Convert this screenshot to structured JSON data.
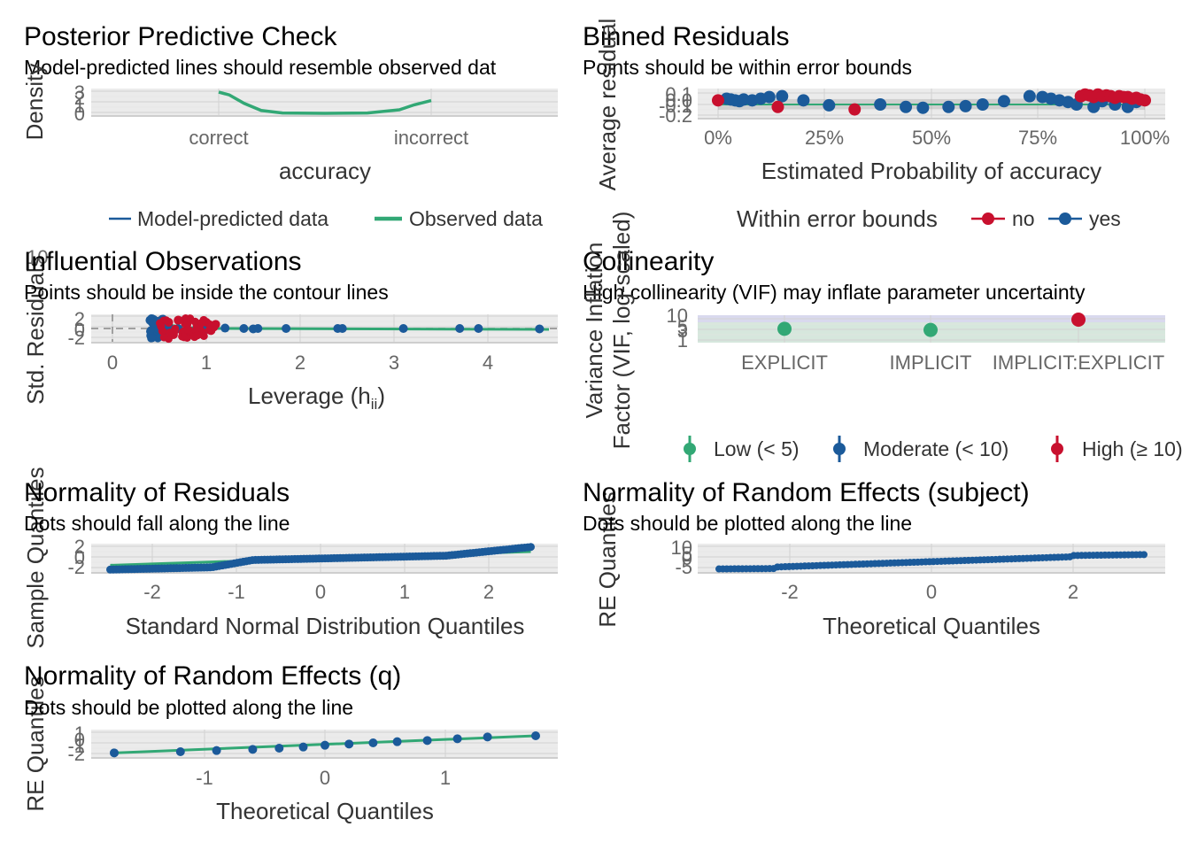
{
  "colors": {
    "green": "#32a875",
    "blue": "#1b5a9a",
    "red": "#c8102e",
    "gray_ribbon": "#9c9c9c"
  },
  "panels": {
    "ppc": {
      "title": "Posterior Predictive Check",
      "subtitle": "Model-predicted lines should resemble observed dat",
      "xlabel": "accuracy",
      "ylabel": "Density",
      "xticks": [
        "correct",
        "incorrect"
      ],
      "yticks": [
        "0",
        "1",
        "2",
        "3"
      ],
      "legend": [
        "Model-predicted data",
        "Observed data"
      ]
    },
    "binned": {
      "title": "Binned Residuals",
      "subtitle": "Points should be within error bounds",
      "xlabel": "Estimated Probability of accuracy",
      "ylabel": "Average residual",
      "xticks": [
        "0%",
        "25%",
        "50%",
        "75%",
        "100%"
      ],
      "yticks": [
        "-0.2",
        "-0.1",
        "0.0",
        "0.1"
      ],
      "legend_title": "Within error bounds",
      "legend": [
        "no",
        "yes"
      ]
    },
    "influential": {
      "title": "Influential Observations",
      "subtitle": "Points should be inside the contour lines",
      "xlabel_main": "Leverage (h",
      "xlabel_sub": "ii",
      "xlabel_close": ")",
      "ylabel": "Std. Residuals",
      "xticks": [
        "0",
        "1",
        "2",
        "3",
        "4"
      ],
      "yticks": [
        "-2",
        "0",
        "2"
      ],
      "ylabel_overlap_tick": "10"
    },
    "collinearity": {
      "title": "Collinearity",
      "subtitle": "High collinearity (VIF) may inflate parameter uncertainty",
      "ylabel_line1": "Variance Inflation",
      "ylabel_line2": "Factor (VIF, log-scaled)",
      "xticks": [
        "EXPLICIT",
        "IMPLICIT",
        "IMPLICIT:EXPLICIT"
      ],
      "yticks": [
        "1",
        "3",
        "5",
        "10"
      ],
      "legend": [
        "Low (< 5)",
        "Moderate (< 10)",
        "High (≥ 10)"
      ]
    },
    "normres": {
      "title": "Normality of Residuals",
      "subtitle": "Dots should fall along the line",
      "xlabel": "Standard Normal Distribution Quantiles",
      "ylabel": "Sample Quantiles",
      "xticks": [
        "-2",
        "-1",
        "0",
        "1",
        "2"
      ],
      "yticks": [
        "-2",
        "0",
        "2"
      ]
    },
    "re_subject": {
      "title": "Normality of Random Effects (subject)",
      "subtitle": "Dots should be plotted along the line",
      "xlabel": "Theoretical Quantiles",
      "ylabel": "RE Quantiles",
      "xticks": [
        "-2",
        "0",
        "2"
      ],
      "yticks": [
        "-5",
        "0",
        "5",
        "10"
      ]
    },
    "re_q": {
      "title": "Normality of Random Effects (q)",
      "subtitle": "Dots should be plotted along the line",
      "xlabel": "Theoretical Quantiles",
      "ylabel": "RE Quantiles",
      "xticks": [
        "-1",
        "0",
        "1"
      ],
      "yticks": [
        "-2",
        "-1",
        "0",
        "1"
      ]
    }
  },
  "chart_data": [
    {
      "type": "line",
      "title": "Posterior Predictive Check",
      "categories": [
        "correct",
        "incorrect"
      ],
      "ylim": [
        0,
        3
      ],
      "series": [
        {
          "name": "Observed data",
          "x": [
            1.0,
            1.05,
            1.12,
            1.2,
            1.3,
            1.5,
            1.7,
            1.85,
            1.92,
            2.0
          ],
          "y": [
            3.0,
            2.6,
            1.4,
            0.4,
            0.05,
            0.0,
            0.05,
            0.5,
            1.2,
            1.8
          ]
        },
        {
          "name": "Model-predicted data",
          "x": [],
          "y": []
        }
      ]
    },
    {
      "type": "scatter",
      "title": "Binned Residuals",
      "xlim": [
        0,
        1
      ],
      "ylim": [
        -0.2,
        0.1
      ],
      "series": [
        {
          "name": "yes",
          "x": [
            0.02,
            0.03,
            0.04,
            0.05,
            0.06,
            0.08,
            0.1,
            0.12,
            0.15,
            0.2,
            0.26,
            0.38,
            0.44,
            0.48,
            0.54,
            0.58,
            0.62,
            0.67,
            0.73,
            0.76,
            0.78,
            0.8,
            0.82,
            0.84,
            0.88,
            0.9,
            0.93,
            0.96,
            0.98
          ],
          "y": [
            0.02,
            0.01,
            0.0,
            -0.01,
            0.01,
            0.0,
            0.02,
            0.04,
            0.05,
            0.0,
            -0.06,
            -0.05,
            -0.08,
            -0.09,
            -0.08,
            -0.07,
            -0.05,
            -0.01,
            0.05,
            0.04,
            0.02,
            0.0,
            -0.02,
            -0.05,
            -0.08,
            -0.01,
            -0.05,
            -0.08,
            -0.02
          ]
        },
        {
          "name": "no",
          "x": [
            0.0,
            0.14,
            0.32,
            0.85,
            0.86,
            0.87,
            0.88,
            0.89,
            0.9,
            0.91,
            0.92,
            0.93,
            0.94,
            0.95,
            0.96,
            0.97,
            0.98,
            0.99,
            1.0
          ],
          "y": [
            0.0,
            -0.08,
            -0.11,
            0.05,
            0.07,
            0.06,
            0.04,
            0.07,
            0.05,
            0.06,
            0.05,
            0.03,
            0.05,
            0.04,
            0.04,
            0.02,
            0.03,
            0.01,
            0.0
          ]
        }
      ]
    },
    {
      "type": "scatter",
      "title": "Influential Observations",
      "xlim": [
        -0.3,
        4.8
      ],
      "ylim": [
        -3,
        3
      ],
      "series": [
        {
          "name": "blue",
          "x": [
            0.4,
            0.45,
            0.5,
            0.55,
            0.6,
            0.7,
            0.8,
            0.9,
            1.0,
            1.2,
            1.4,
            1.5,
            1.55,
            1.85,
            2.4,
            2.45,
            3.1,
            3.7,
            3.9,
            4.55
          ],
          "y": [
            2.0,
            -1.5,
            1.0,
            -1.0,
            0.5,
            0.0,
            -0.5,
            0.2,
            -0.2,
            0.1,
            0.0,
            -0.1,
            0.0,
            0.0,
            0.0,
            0.0,
            0.0,
            0.0,
            0.0,
            -0.1
          ]
        },
        {
          "name": "red",
          "x": [
            0.5,
            0.55,
            0.6,
            0.65,
            0.7,
            0.75,
            0.8,
            0.85,
            0.9,
            0.95,
            1.0,
            1.05,
            1.1
          ],
          "y": [
            1.8,
            -1.8,
            1.5,
            -1.5,
            2.0,
            -1.0,
            1.5,
            -1.5,
            1.0,
            -0.8,
            1.5,
            -0.5,
            1.0
          ]
        }
      ]
    },
    {
      "type": "scatter",
      "title": "Collinearity",
      "categories": [
        "EXPLICIT",
        "IMPLICIT",
        "IMPLICIT:EXPLICIT"
      ],
      "values": [
        3.8,
        3.4,
        10.3
      ],
      "ylim": [
        1,
        10
      ],
      "scale": "log"
    },
    {
      "type": "scatter",
      "title": "Normality of Residuals",
      "xlim": [
        -2.6,
        2.6
      ],
      "ylim": [
        -2,
        2
      ],
      "line": {
        "x": [
          -2.5,
          2.5
        ],
        "y": [
          -1.2,
          1.0
        ]
      }
    },
    {
      "type": "scatter",
      "title": "Normality of Random Effects (subject)",
      "xlim": [
        -3.2,
        3.2
      ],
      "ylim": [
        -5,
        10
      ],
      "line": {
        "x": [
          -3.0,
          3.0
        ],
        "y": [
          -5.0,
          5.0
        ]
      }
    },
    {
      "type": "scatter",
      "title": "Normality of Random Effects (q)",
      "x": [
        -1.75,
        -1.2,
        -0.9,
        -0.6,
        -0.38,
        -0.18,
        0.0,
        0.2,
        0.4,
        0.6,
        0.85,
        1.1,
        1.35,
        1.75
      ],
      "y": [
        -1.9,
        -1.7,
        -1.5,
        -1.3,
        -1.1,
        -0.9,
        -0.6,
        -0.4,
        -0.2,
        0.0,
        0.2,
        0.5,
        0.8,
        1.0
      ],
      "xlim": [
        -2.0,
        1.8
      ],
      "ylim": [
        -2,
        1
      ],
      "line": {
        "x": [
          -1.75,
          1.75
        ],
        "y": [
          -1.9,
          1.0
        ]
      }
    }
  ]
}
